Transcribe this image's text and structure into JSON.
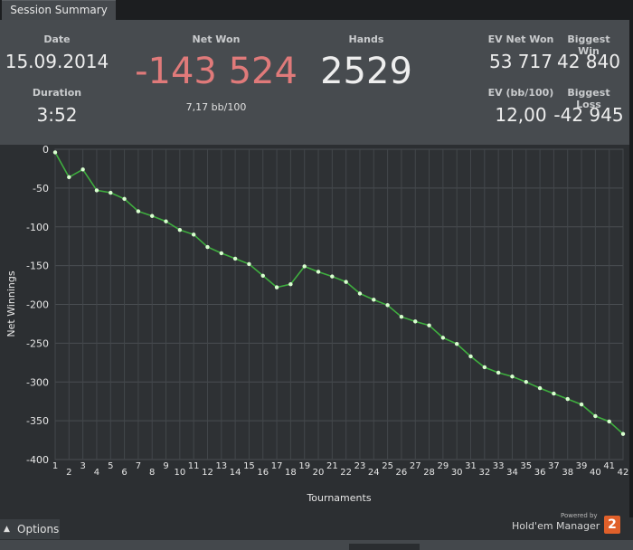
{
  "tab": {
    "label": "Session Summary"
  },
  "summary": {
    "date_label": "Date",
    "date_value": "15.09.2014",
    "duration_label": "Duration",
    "duration_value": "3:52",
    "net_won_label": "Net Won",
    "net_won_value": "-143 524",
    "bb_per_100": "7,17 bb/100",
    "hands_label": "Hands",
    "hands_value": "2529",
    "ev_net_won_label": "EV Net Won",
    "ev_net_won_value": "53 717",
    "biggest_win_label": "Biggest Win",
    "biggest_win_value": "42 840",
    "ev_bb_label": "EV (bb/100)",
    "ev_bb_value": "12,00",
    "biggest_loss_label": "Biggest Loss",
    "biggest_loss_value": "-42 945"
  },
  "colors": {
    "net_won": "#e07a7a",
    "line": "#3fae3f",
    "point": "#d9ffd0"
  },
  "chart_data": {
    "type": "line",
    "xlabel": "Tournaments",
    "ylabel": "Net Winnings",
    "xlim": [
      1,
      42
    ],
    "ylim": [
      -400,
      0
    ],
    "yticks": [
      0,
      -50,
      -100,
      -150,
      -200,
      -250,
      -300,
      -350,
      -400
    ],
    "grid": true,
    "series": [
      {
        "x": [
          1,
          2,
          3,
          4,
          5,
          6,
          7,
          8,
          9,
          10,
          11,
          12,
          13,
          14,
          15,
          16,
          17,
          18,
          19,
          20,
          21,
          22,
          23,
          24,
          25,
          26,
          27,
          28,
          29,
          30,
          31,
          32,
          33,
          34,
          35,
          36,
          37,
          38,
          39,
          40,
          41,
          42
        ],
        "values": [
          -4,
          -36,
          -26,
          -53,
          -56,
          -64,
          -80,
          -86,
          -93,
          -104,
          -110,
          -126,
          -134,
          -141,
          -148,
          -163,
          -178,
          -174,
          -151,
          -158,
          -164,
          -171,
          -186,
          -194,
          -201,
          -216,
          -222,
          -227,
          -243,
          -251,
          -267,
          -281,
          -288,
          -293,
          -300,
          -308,
          -315,
          -322,
          -329,
          -344,
          -351,
          -367
        ]
      }
    ]
  },
  "footer": {
    "options_label": "Options",
    "powered_by": "Powered by",
    "brand": "Hold'em Manager",
    "brand_badge": "2"
  }
}
